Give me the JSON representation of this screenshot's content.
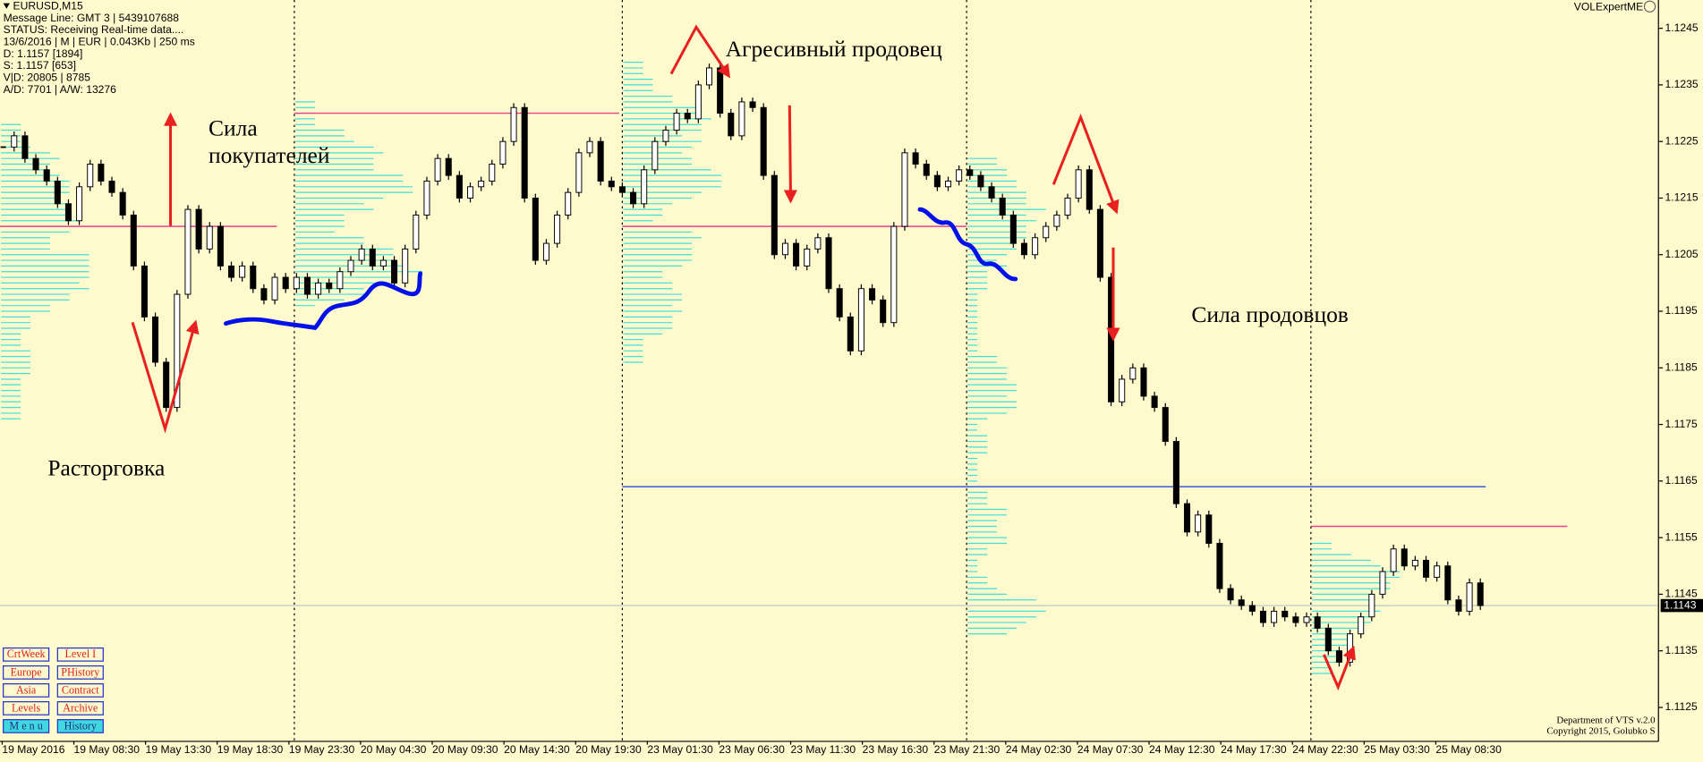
{
  "header": {
    "symbol": "EURUSD,M15",
    "lines": [
      "Message Line: GMT 3 | 5439107688",
      "STATUS:  Receiving Real-time data....",
      "13/6/2016 | M | EUR | 0.043Kb | 250 ms",
      "D: 1.1157  [1894]",
      "S: 1.1157  [653]",
      "V|D: 20805 | 8785",
      "A/D: 7701 | A/W: 13276"
    ],
    "indicator": "VOLExpertME"
  },
  "chart_data": {
    "type": "candlestick",
    "closes": [
      1.1224,
      1.1226,
      1.1222,
      1.122,
      1.1218,
      1.1214,
      1.1211,
      1.1217,
      1.1221,
      1.1218,
      1.1216,
      1.1212,
      1.1203,
      1.1194,
      1.1186,
      1.1178,
      1.1198,
      1.1213,
      1.1206,
      1.121,
      1.1203,
      1.1201,
      1.1203,
      1.1199,
      1.1197,
      1.1201,
      1.1199,
      1.1201,
      1.1198,
      1.12,
      1.1199,
      1.1202,
      1.1204,
      1.1206,
      1.1203,
      1.1204,
      1.12,
      1.1206,
      1.1212,
      1.1218,
      1.1222,
      1.1219,
      1.1215,
      1.1217,
      1.1218,
      1.1221,
      1.1225,
      1.1231,
      1.1215,
      1.1204,
      1.1207,
      1.1212,
      1.1216,
      1.1223,
      1.1225,
      1.1218,
      1.1217,
      1.1216,
      1.1214,
      1.122,
      1.1225,
      1.1227,
      1.123,
      1.1229,
      1.1235,
      1.1238,
      1.123,
      1.1226,
      1.1232,
      1.1231,
      1.1219,
      1.1205,
      1.1207,
      1.1203,
      1.1206,
      1.1208,
      1.1199,
      1.1194,
      1.1188,
      1.1199,
      1.1197,
      1.1193,
      1.121,
      1.1223,
      1.1221,
      1.1219,
      1.1217,
      1.1218,
      1.122,
      1.1219,
      1.1217,
      1.1215,
      1.1212,
      1.1207,
      1.1205,
      1.1208,
      1.121,
      1.1212,
      1.1215,
      1.122,
      1.1213,
      1.1201,
      1.1179,
      1.1183,
      1.1185,
      1.118,
      1.1178,
      1.1172,
      1.1161,
      1.1156,
      1.1159,
      1.1154,
      1.1146,
      1.1144,
      1.1143,
      1.1142,
      1.114,
      1.1142,
      1.1141,
      1.114,
      1.1141,
      1.1139,
      1.1135,
      1.1133,
      1.1138,
      1.1141,
      1.1145,
      1.1149,
      1.1153,
      1.115,
      1.1151,
      1.1148,
      1.115,
      1.1144,
      1.1142,
      1.1147,
      1.1143
    ],
    "ylim": [
      1.1119,
      1.125
    ],
    "yticks": [
      1.1125,
      1.1135,
      1.1145,
      1.1155,
      1.1165,
      1.1175,
      1.1185,
      1.1195,
      1.1205,
      1.1215,
      1.1225,
      1.1235,
      1.1245
    ],
    "current_price": 1.1143,
    "x_labels": [
      "19 May 2016",
      "19 May 08:30",
      "19 May 13:30",
      "19 May 18:30",
      "19 May 23:30",
      "20 May 04:30",
      "20 May 09:30",
      "20 May 14:30",
      "20 May 19:30",
      "23 May 01:30",
      "23 May 06:30",
      "23 May 11:30",
      "23 May 16:30",
      "23 May 21:30",
      "24 May 02:30",
      "24 May 07:30",
      "24 May 12:30",
      "24 May 17:30",
      "24 May 22:30",
      "25 May 03:30",
      "25 May 08:30"
    ],
    "levels": [
      {
        "value": 1.121,
        "color": "#e8408c"
      },
      {
        "value": 1.123,
        "color": "#e8408c"
      },
      {
        "value": 1.121,
        "color": "#e8408c"
      },
      {
        "value": 1.1164,
        "color": "#2050e0"
      },
      {
        "value": 1.1157,
        "color": "#e8408c"
      }
    ],
    "annotations": [
      "Сила",
      "покупателей",
      "Агресивный продовец",
      "Сила продовцов",
      "Расторговка"
    ]
  },
  "buttons": [
    "CrtWeek",
    "Level I",
    "Europe",
    "PHistory",
    "Asia",
    "Contract",
    "Levels",
    "Archive",
    "M e n u",
    "History"
  ],
  "footer": [
    "Department of VTS  v.2.0",
    "Copyright 2015, Golubko S"
  ]
}
